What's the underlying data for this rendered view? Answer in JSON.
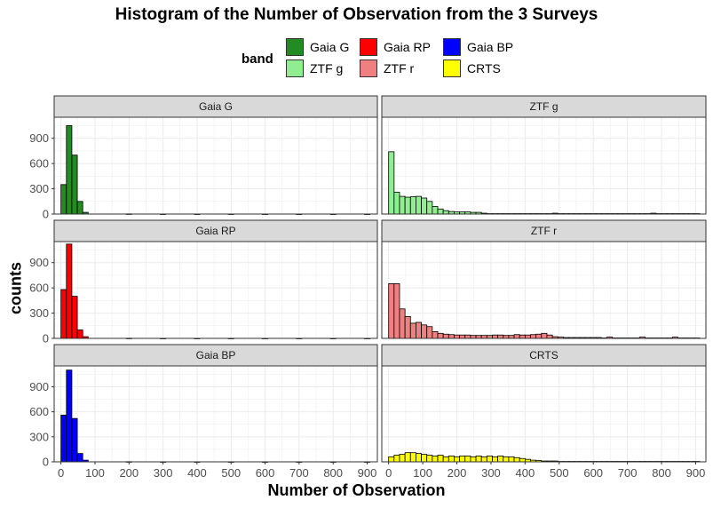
{
  "chart_data": {
    "type": "bar",
    "title": "Histogram of the Number of Observation from the 3 Surveys",
    "xlabel": "Number of Observation",
    "ylabel": "counts",
    "legend_title": "band",
    "legend_position": "top",
    "grid": true,
    "xlim": [
      -20,
      930
    ],
    "ylim": [
      0,
      1150
    ],
    "x_ticks": [
      0,
      100,
      200,
      300,
      400,
      500,
      600,
      700,
      800,
      900
    ],
    "y_ticks": [
      0,
      300,
      600,
      900
    ],
    "bin_width": 16,
    "series": [
      {
        "name": "Gaia G",
        "color": "#228B22",
        "x": [
          8,
          24,
          40,
          56,
          72,
          200,
          300,
          400,
          500,
          600,
          700,
          800,
          900
        ],
        "values": [
          350,
          1050,
          700,
          150,
          20,
          2,
          1,
          1,
          1,
          1,
          1,
          1,
          1
        ]
      },
      {
        "name": "ZTF g",
        "color": "#90EE90",
        "x": [
          8,
          24,
          40,
          56,
          72,
          88,
          104,
          120,
          136,
          152,
          168,
          184,
          200,
          216,
          232,
          248,
          264,
          280,
          296,
          312,
          328,
          344,
          360,
          376,
          392,
          408,
          424,
          440,
          456,
          472,
          488,
          504,
          520,
          536,
          552,
          568,
          584,
          600,
          616,
          632,
          648,
          664,
          680,
          696,
          712,
          728,
          744,
          760,
          776,
          792,
          808,
          824,
          840,
          856,
          872,
          888,
          904
        ],
        "values": [
          740,
          260,
          210,
          200,
          205,
          210,
          190,
          150,
          90,
          60,
          40,
          30,
          25,
          25,
          25,
          20,
          20,
          10,
          5,
          5,
          5,
          5,
          5,
          5,
          5,
          5,
          5,
          5,
          5,
          5,
          10,
          5,
          5,
          5,
          5,
          5,
          5,
          5,
          5,
          5,
          5,
          5,
          5,
          5,
          5,
          5,
          5,
          5,
          10,
          5,
          5,
          5,
          5,
          5,
          5,
          5,
          5
        ]
      },
      {
        "name": "Gaia RP",
        "color": "#FF0000",
        "x": [
          8,
          24,
          40,
          56,
          72,
          200,
          300,
          400,
          500,
          600,
          700,
          800,
          900
        ],
        "values": [
          580,
          1120,
          500,
          100,
          20,
          2,
          1,
          1,
          1,
          1,
          1,
          1,
          1
        ]
      },
      {
        "name": "ZTF r",
        "color": "#F08080",
        "x": [
          8,
          24,
          40,
          56,
          72,
          88,
          104,
          120,
          136,
          152,
          168,
          184,
          200,
          216,
          232,
          248,
          264,
          280,
          296,
          312,
          328,
          344,
          360,
          376,
          392,
          408,
          424,
          440,
          456,
          472,
          488,
          504,
          520,
          536,
          552,
          568,
          584,
          600,
          616,
          632,
          648,
          664,
          680,
          696,
          712,
          728,
          744,
          760,
          776,
          792,
          808,
          824,
          840,
          856,
          872,
          888,
          904
        ],
        "values": [
          650,
          650,
          350,
          260,
          180,
          190,
          160,
          140,
          80,
          60,
          50,
          45,
          40,
          40,
          40,
          35,
          35,
          35,
          35,
          40,
          40,
          35,
          35,
          45,
          40,
          40,
          45,
          50,
          60,
          40,
          20,
          15,
          10,
          10,
          10,
          10,
          10,
          10,
          10,
          5,
          15,
          5,
          5,
          5,
          5,
          5,
          15,
          5,
          5,
          5,
          5,
          5,
          15,
          5,
          5,
          5,
          5
        ]
      },
      {
        "name": "Gaia BP",
        "color": "#0000FF",
        "x": [
          8,
          24,
          40,
          56,
          72,
          200,
          300,
          400,
          500,
          600,
          700,
          800,
          900
        ],
        "values": [
          560,
          1100,
          520,
          100,
          20,
          2,
          1,
          1,
          1,
          1,
          1,
          1,
          1
        ]
      },
      {
        "name": "CRTS",
        "color": "#FFFF00",
        "x": [
          8,
          24,
          40,
          56,
          72,
          88,
          104,
          120,
          136,
          152,
          168,
          184,
          200,
          216,
          232,
          248,
          264,
          280,
          296,
          312,
          328,
          344,
          360,
          376,
          392,
          408,
          424,
          440,
          456,
          472,
          488,
          504,
          520,
          536,
          552,
          568,
          584,
          600,
          616,
          632,
          648,
          664,
          680,
          696,
          712,
          728,
          744,
          760,
          776,
          792,
          808,
          824,
          840,
          856,
          872,
          888,
          904
        ],
        "values": [
          60,
          80,
          90,
          110,
          110,
          100,
          90,
          80,
          70,
          80,
          60,
          70,
          60,
          70,
          70,
          60,
          70,
          60,
          70,
          60,
          70,
          60,
          60,
          50,
          40,
          30,
          20,
          15,
          10,
          10,
          10,
          5,
          5,
          5,
          5,
          5,
          5,
          5,
          5,
          5,
          5,
          5,
          5,
          5,
          5,
          5,
          5,
          5,
          5,
          5,
          5,
          5,
          5,
          5,
          5,
          5,
          5
        ]
      }
    ],
    "panel_order": [
      "Gaia G",
      "ZTF g",
      "Gaia RP",
      "ZTF r",
      "Gaia BP",
      "CRTS"
    ],
    "legend_layout": [
      [
        "Gaia G",
        "ZTF g"
      ],
      [
        "Gaia RP",
        "ZTF r"
      ],
      [
        "Gaia BP",
        "CRTS"
      ]
    ]
  }
}
